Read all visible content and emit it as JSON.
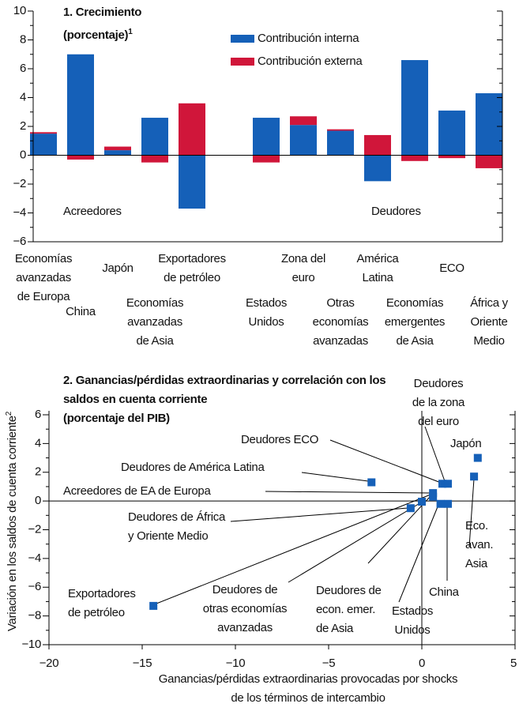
{
  "chart_data": [
    {
      "type": "bar",
      "stacked": true,
      "title": "1. Crecimiento",
      "subtitle": "(porcentaje)",
      "subtitle_note": "1",
      "categories": [
        "Economías\navanzadas\nde Europa",
        "China",
        "Japón",
        "Economías\navanzadas\nde Asia",
        "Exportadores\nde petróleo",
        null,
        "Estados\nUnidos",
        "Zona del\neuro",
        "Otras\neconomías\navanzadas",
        "América\nLatina",
        "Economías\nemergentes\nde Asia",
        "ECO",
        "África y\nOriente\nMedio"
      ],
      "series": [
        {
          "name": "Contribución interna",
          "color": "#1560b8",
          "values": [
            1.5,
            7.0,
            0.35,
            2.6,
            -3.7,
            null,
            2.6,
            2.1,
            1.7,
            -1.8,
            6.6,
            3.1,
            4.3
          ]
        },
        {
          "name": "Contribución externa",
          "color": "#d0163a",
          "values": [
            0.1,
            -0.3,
            0.25,
            -0.5,
            3.6,
            null,
            -0.5,
            0.6,
            0.1,
            1.4,
            -0.4,
            -0.2,
            -0.9
          ]
        }
      ],
      "ylim": [
        -6,
        10
      ],
      "yticks": [
        {
          "value": -6,
          "label": "−6"
        },
        {
          "value": -4,
          "label": "−4"
        },
        {
          "value": -2,
          "label": "−2"
        },
        0,
        2,
        4,
        6,
        8,
        10
      ],
      "yminorticks": [
        -5,
        -3,
        -1,
        1,
        3,
        5,
        7,
        9
      ],
      "annotations": [
        "Acreedores",
        "Deudores"
      ]
    },
    {
      "type": "scatter",
      "title": "2. Ganancias/pérdidas extraordinarias y correlación con los\nsaldos en cuenta corriente\n(porcentaje del PIB)",
      "xlabel": "Ganancias/pérdidas extraordinarias provocadas por shocks\nde los términos de intercambio",
      "ylabel": "Variación en los saldos de cuenta corriente",
      "ylabel_note": "2",
      "color": "#1560b8",
      "x": [
        -14.4,
        -2.7,
        0.6,
        -0.6,
        0.0,
        0.6,
        1.1,
        1.4,
        1.0,
        1.4,
        2.8,
        3.0
      ],
      "values": [
        -7.3,
        1.3,
        0.55,
        -0.5,
        -0.05,
        0.3,
        1.2,
        1.2,
        -0.2,
        -0.2,
        1.7,
        3.0
      ],
      "point_labels": [
        "Exportadores\nde petróleo",
        "Deudores de América Latina",
        "Acreedores de EA de Europa",
        "Deudores de África\ny Oriente Medio",
        "Deudores de\notras economías\navanzadas",
        "Deudores de\necon. emer.\nde Asia",
        "Deudores ECO",
        "Deudores\nde la zona\ndel euro",
        "Estados\nUnidos",
        "China",
        "Eco.\navan.\nAsia",
        "Japón"
      ],
      "xlim": [
        -20,
        5
      ],
      "xticks": [
        {
          "value": -20,
          "label": "−20"
        },
        {
          "value": -15,
          "label": "−15"
        },
        {
          "value": -10,
          "label": "−10"
        },
        {
          "value": -5,
          "label": "−5"
        },
        0,
        5
      ],
      "ylim": [
        -10,
        6
      ],
      "yticks": [
        {
          "value": -10,
          "label": "−10"
        },
        {
          "value": -8,
          "label": "−8"
        },
        {
          "value": -6,
          "label": "−6"
        },
        {
          "value": -4,
          "label": "−4"
        },
        {
          "value": -2,
          "label": "−2"
        },
        0,
        2,
        4,
        6
      ],
      "yminorticks": [
        -9,
        -7,
        -5,
        -3,
        -1,
        1,
        3,
        5
      ]
    }
  ]
}
